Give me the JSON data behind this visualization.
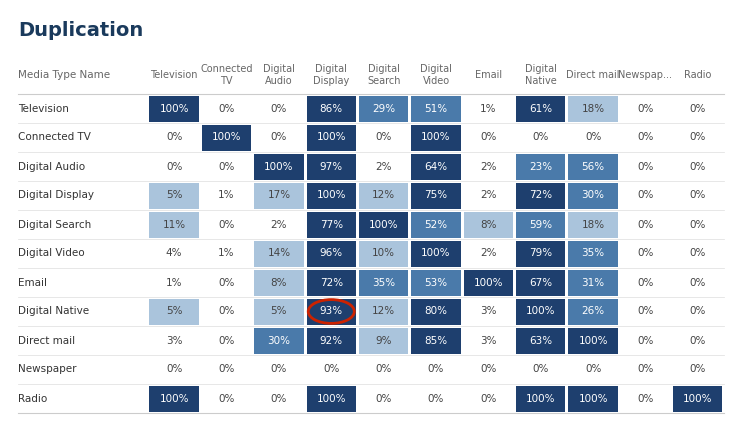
{
  "title": "Duplication",
  "col_header": [
    "Television",
    "Connected\nTV",
    "Digital\nAudio",
    "Digital\nDisplay",
    "Digital\nSearch",
    "Digital\nVideo",
    "Email",
    "Digital\nNative",
    "Direct mail",
    "Newspap...",
    "Radio"
  ],
  "row_header": [
    "Television",
    "Connected TV",
    "Digital Audio",
    "Digital Display",
    "Digital Search",
    "Digital Video",
    "Email",
    "Digital Native",
    "Direct mail",
    "Newspaper",
    "Radio"
  ],
  "row_label_col": "Media Type Name",
  "values": [
    [
      100,
      0,
      0,
      86,
      29,
      51,
      1,
      61,
      18,
      0,
      0
    ],
    [
      0,
      100,
      0,
      100,
      0,
      100,
      0,
      0,
      0,
      0,
      0
    ],
    [
      0,
      0,
      100,
      97,
      2,
      64,
      2,
      23,
      56,
      0,
      0
    ],
    [
      5,
      1,
      17,
      100,
      12,
      75,
      2,
      72,
      30,
      0,
      0
    ],
    [
      11,
      0,
      2,
      77,
      100,
      52,
      8,
      59,
      18,
      0,
      0
    ],
    [
      4,
      1,
      14,
      96,
      10,
      100,
      2,
      79,
      35,
      0,
      0
    ],
    [
      1,
      0,
      8,
      72,
      35,
      53,
      100,
      67,
      31,
      0,
      0
    ],
    [
      5,
      0,
      5,
      93,
      12,
      80,
      3,
      100,
      26,
      0,
      0
    ],
    [
      3,
      0,
      30,
      92,
      9,
      85,
      3,
      63,
      100,
      0,
      0
    ],
    [
      0,
      0,
      0,
      0,
      0,
      0,
      0,
      0,
      0,
      0,
      0
    ],
    [
      100,
      0,
      0,
      100,
      0,
      0,
      0,
      100,
      100,
      0,
      100
    ]
  ],
  "circle_cell": [
    7,
    3
  ],
  "bg_color": "#ffffff",
  "title_color": "#1a3a5c",
  "header_color": "#666666",
  "row_label_color": "#333333",
  "cell_text_color_light": "#ffffff",
  "cell_text_color_dark": "#444444",
  "dark_blue": "#1e3f6e",
  "mid_blue": "#4a7aaa",
  "light_blue": "#aac4dc",
  "very_light_blue": "#d4e5f2",
  "threshold_dark": 60,
  "threshold_mid": 20,
  "threshold_light": 5,
  "circle_color": "#cc2200",
  "line_color": "#cccccc",
  "sep_line_color": "#dddddd"
}
